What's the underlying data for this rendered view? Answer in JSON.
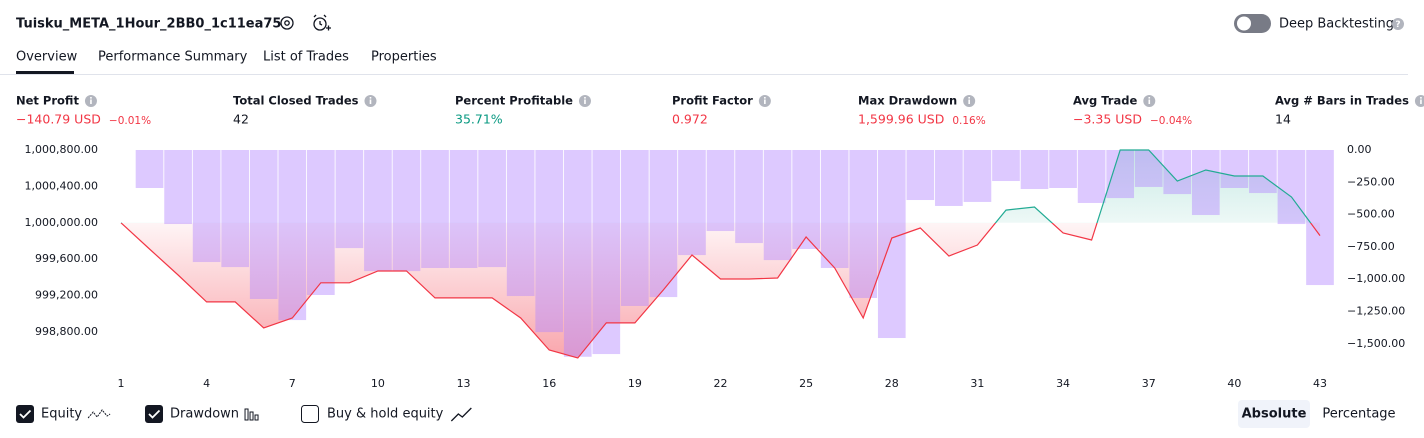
{
  "header": {
    "title": "Tuisku_META_1Hour_2BB0_1c11ea75",
    "toggle_label": "Deep Backtesting",
    "toggle_on": false
  },
  "tabs": [
    "Overview",
    "Performance Summary",
    "List of Trades",
    "Properties"
  ],
  "active_tab": 0,
  "metrics": [
    {
      "label": "Net Profit",
      "value": "−140.79 USD",
      "percent": "−0.01%",
      "color": "#f23645"
    },
    {
      "label": "Total Closed Trades",
      "value": "42",
      "color": "#131722"
    },
    {
      "label": "Percent Profitable",
      "value": "35.71%",
      "color": "#089981"
    },
    {
      "label": "Profit Factor",
      "value": "0.972",
      "color": "#f23645"
    },
    {
      "label": "Max Drawdown",
      "value": "1,599.96 USD",
      "percent": "0.16%",
      "color": "#f23645"
    },
    {
      "label": "Avg Trade",
      "value": "−3.35 USD",
      "percent": "−0.04%",
      "color": "#f23645"
    },
    {
      "label": "Avg # Bars in Trades",
      "value": "14",
      "color": "#131722"
    }
  ],
  "chart_data": {
    "type": "combo",
    "x": [
      1,
      2,
      3,
      4,
      5,
      6,
      7,
      8,
      9,
      10,
      11,
      12,
      13,
      14,
      15,
      16,
      17,
      18,
      19,
      20,
      21,
      22,
      23,
      24,
      25,
      26,
      27,
      28,
      29,
      30,
      31,
      32,
      33,
      34,
      35,
      36,
      37,
      38,
      39,
      40,
      41,
      42,
      43
    ],
    "xlim": [
      1,
      43
    ],
    "xticks": [
      1,
      4,
      7,
      10,
      13,
      16,
      19,
      22,
      25,
      28,
      31,
      34,
      37,
      40,
      43
    ],
    "ylim": [
      998492,
      1000800
    ],
    "yticks": [
      {
        "value": 1000800,
        "label": "1,000,800.00"
      },
      {
        "value": 1000400,
        "label": "1,000,400.00"
      },
      {
        "value": 1000000,
        "label": "1,000,000.00"
      },
      {
        "value": 999600,
        "label": "999,600.00"
      },
      {
        "value": 999200,
        "label": "999,200.00"
      },
      {
        "value": 998800,
        "label": "998,800.00"
      }
    ],
    "y2lim": [
      -1625,
      0
    ],
    "y2ticks": [
      {
        "value": 0,
        "label": "0.00"
      },
      {
        "value": -250,
        "label": "−250.00"
      },
      {
        "value": -500,
        "label": "−500.00"
      },
      {
        "value": -750,
        "label": "−750.00"
      },
      {
        "value": -1000,
        "label": "−1,000.00"
      },
      {
        "value": -1250,
        "label": "−1,250.00"
      },
      {
        "value": -1500,
        "label": "−1,500.00"
      }
    ],
    "series": [
      {
        "name": "Equity",
        "type": "line",
        "color": "#f23645",
        "color_above": "#22ab94",
        "checked": true,
        "values": [
          1000000,
          999712,
          999426,
          999130,
          999130,
          998844,
          998954,
          999340,
          999340,
          999470,
          999470,
          999174,
          999174,
          999174,
          998954,
          998602,
          998514,
          998900,
          998900,
          999262,
          999646,
          999382,
          999382,
          999393,
          999844,
          999503,
          998954,
          999833,
          999943,
          999635,
          999756,
          1000140,
          1000173,
          999888,
          999811,
          1000800,
          1000800,
          1000459,
          1000580,
          1000514,
          1000514,
          1000283,
          999859.21
        ]
      },
      {
        "name": "Drawdown",
        "type": "bar",
        "axis": "y2",
        "color": "#b388ff",
        "checked": true,
        "values": [
          null,
          -294,
          -573,
          -867,
          -906,
          -1153,
          -1316,
          -1122,
          -759,
          -937,
          -937,
          -913,
          -913,
          -906,
          -1130,
          -1409,
          -1599.96,
          -1579,
          -1207,
          -1138,
          -813,
          -627,
          -720,
          -852,
          -766,
          -913,
          -1145,
          -1455,
          -387,
          -433,
          -402,
          -240,
          -302,
          -294,
          -410,
          -372,
          -286,
          -341,
          -503,
          -294,
          -333,
          -573,
          -1045
        ]
      }
    ],
    "extra_toggle": {
      "name": "Buy & hold equity",
      "checked": false
    }
  },
  "mode_buttons": [
    {
      "label": "Absolute",
      "selected": true
    },
    {
      "label": "Percentage",
      "selected": false
    }
  ]
}
